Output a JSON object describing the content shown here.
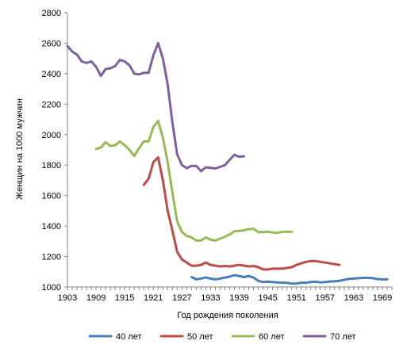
{
  "chart_data": {
    "type": "line",
    "title": "",
    "xlabel": "Год рождения поколения",
    "ylabel": "Женщин на 1000 мужчин",
    "ylim": [
      1000,
      2800
    ],
    "xlim": [
      1903,
      1971
    ],
    "yticks": [
      1000,
      1200,
      1400,
      1600,
      1800,
      2000,
      2200,
      2400,
      2600,
      2800
    ],
    "xticks": [
      1903,
      1909,
      1915,
      1921,
      1927,
      1933,
      1939,
      1945,
      1951,
      1957,
      1963,
      1969
    ],
    "grid": false,
    "legend_position": "bottom",
    "series": [
      {
        "name": "40 лет",
        "color": "#4a7ebb",
        "x": [
          1929,
          1930,
          1931,
          1932,
          1933,
          1934,
          1935,
          1936,
          1937,
          1938,
          1939,
          1940,
          1941,
          1942,
          1943,
          1944,
          1945,
          1946,
          1947,
          1948,
          1949,
          1950,
          1951,
          1952,
          1953,
          1954,
          1955,
          1956,
          1957,
          1958,
          1959,
          1960,
          1961,
          1962,
          1963,
          1964,
          1965,
          1966,
          1967,
          1968,
          1969,
          1970
        ],
        "values": [
          1065,
          1050,
          1055,
          1063,
          1055,
          1050,
          1055,
          1062,
          1068,
          1078,
          1072,
          1065,
          1072,
          1062,
          1040,
          1032,
          1035,
          1032,
          1030,
          1028,
          1028,
          1022,
          1023,
          1028,
          1028,
          1033,
          1035,
          1030,
          1032,
          1036,
          1038,
          1040,
          1048,
          1053,
          1055,
          1058,
          1060,
          1060,
          1058,
          1052,
          1050,
          1050
        ]
      },
      {
        "name": "50 лет",
        "color": "#be4b48",
        "x": [
          1919,
          1920,
          1921,
          1922,
          1923,
          1924,
          1925,
          1926,
          1927,
          1928,
          1929,
          1930,
          1931,
          1932,
          1933,
          1934,
          1935,
          1936,
          1937,
          1938,
          1939,
          1940,
          1941,
          1942,
          1943,
          1944,
          1945,
          1946,
          1947,
          1948,
          1949,
          1950,
          1951,
          1952,
          1953,
          1954,
          1955,
          1956,
          1957,
          1958,
          1959,
          1960
        ],
        "values": [
          1670,
          1710,
          1820,
          1850,
          1700,
          1500,
          1370,
          1230,
          1180,
          1160,
          1140,
          1140,
          1145,
          1160,
          1145,
          1140,
          1135,
          1138,
          1135,
          1140,
          1145,
          1140,
          1135,
          1138,
          1130,
          1115,
          1115,
          1120,
          1120,
          1120,
          1125,
          1130,
          1145,
          1155,
          1165,
          1170,
          1170,
          1165,
          1160,
          1155,
          1150,
          1145
        ]
      },
      {
        "name": "60 лет",
        "color": "#98b954",
        "x": [
          1909,
          1910,
          1911,
          1912,
          1913,
          1914,
          1915,
          1916,
          1917,
          1918,
          1919,
          1920,
          1921,
          1922,
          1923,
          1924,
          1925,
          1926,
          1927,
          1928,
          1929,
          1930,
          1931,
          1932,
          1933,
          1934,
          1935,
          1936,
          1937,
          1938,
          1939,
          1940,
          1941,
          1942,
          1943,
          1944,
          1945,
          1946,
          1947,
          1948,
          1949,
          1950
        ],
        "values": [
          1905,
          1915,
          1950,
          1925,
          1930,
          1955,
          1930,
          1900,
          1860,
          1910,
          1955,
          1955,
          2050,
          2090,
          1980,
          1820,
          1620,
          1430,
          1360,
          1335,
          1325,
          1305,
          1305,
          1325,
          1310,
          1305,
          1318,
          1330,
          1345,
          1365,
          1368,
          1372,
          1380,
          1382,
          1360,
          1360,
          1362,
          1358,
          1355,
          1362,
          1362,
          1362
        ]
      },
      {
        "name": "70 лет",
        "color": "#7d60a0",
        "x": [
          1903,
          1904,
          1905,
          1906,
          1907,
          1908,
          1909,
          1910,
          1911,
          1912,
          1913,
          1914,
          1915,
          1916,
          1917,
          1918,
          1919,
          1920,
          1921,
          1922,
          1923,
          1924,
          1925,
          1926,
          1927,
          1928,
          1929,
          1930,
          1931,
          1932,
          1933,
          1934,
          1935,
          1936,
          1937,
          1938,
          1939,
          1940
        ],
        "values": [
          2580,
          2545,
          2525,
          2480,
          2470,
          2480,
          2445,
          2385,
          2430,
          2435,
          2450,
          2490,
          2480,
          2455,
          2400,
          2395,
          2405,
          2405,
          2520,
          2600,
          2500,
          2330,
          2080,
          1870,
          1800,
          1780,
          1795,
          1795,
          1760,
          1785,
          1782,
          1778,
          1788,
          1800,
          1835,
          1868,
          1855,
          1858
        ]
      }
    ]
  }
}
